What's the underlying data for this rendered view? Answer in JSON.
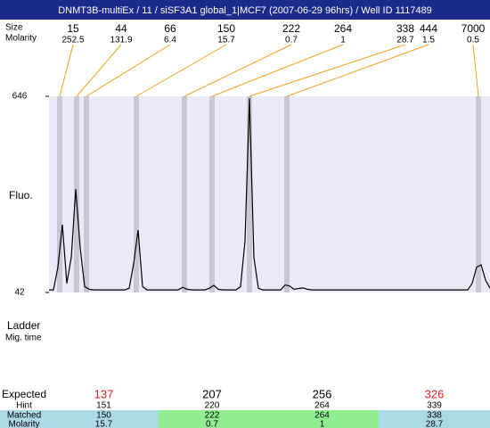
{
  "header": {
    "title": "DNMT3B-multiEx / 11 / siSF3A1 global_1|MCF7 (2007-06-29 96hrs) / Well ID 1117489"
  },
  "ladder_header": {
    "size_label": "Size",
    "molarity_label": "Molarity"
  },
  "ladder": [
    {
      "size": 15,
      "molarity": 252.5
    },
    {
      "size": 44,
      "molarity": 131.9
    },
    {
      "size": 66,
      "molarity": 6.4
    },
    {
      "size": 150,
      "molarity": 15.7
    },
    {
      "size": 222,
      "molarity": 0.7
    },
    {
      "size": 264,
      "molarity": 1
    },
    {
      "size": 338,
      "molarity": 28.7
    },
    {
      "size": 444,
      "molarity": 1.5
    },
    {
      "size": 7000,
      "molarity": 0.5
    }
  ],
  "chart_data": {
    "type": "line",
    "y_label": "Fluo.",
    "ylim": [
      42,
      646
    ],
    "yticks": [
      646,
      42
    ],
    "color": "#000000",
    "values": [
      50,
      50,
      120,
      251,
      70,
      150,
      360,
      180,
      60,
      52,
      50,
      50,
      50,
      50,
      50,
      50,
      50,
      50,
      55,
      130,
      234,
      60,
      50,
      50,
      50,
      50,
      50,
      50,
      50,
      50,
      58,
      52,
      50,
      50,
      50,
      50,
      55,
      64,
      52,
      50,
      50,
      50,
      50,
      60,
      200,
      640,
      150,
      55,
      50,
      50,
      50,
      50,
      50,
      65,
      62,
      52,
      54,
      56,
      52,
      50,
      50,
      50,
      50,
      50,
      50,
      50,
      50,
      50,
      50,
      50,
      50,
      50,
      50,
      50,
      50,
      50,
      50,
      50,
      50,
      50,
      50,
      50,
      50,
      50,
      50,
      50,
      50,
      50,
      50,
      50,
      50,
      50,
      50,
      50,
      50,
      70,
      120,
      127,
      80,
      55
    ]
  },
  "results": {
    "ladder_label": "Ladder",
    "mig_label": "Mig. time",
    "row_labels": [
      "Expected",
      "Hint",
      "Matched",
      "Molarity"
    ],
    "columns": [
      {
        "expected": 137,
        "expected_color": "#e02020",
        "hint": 151,
        "matched": 150,
        "molarity": 15.7,
        "background": "#add8e6"
      },
      {
        "expected": 207,
        "expected_color": "#000000",
        "hint": 220,
        "matched": 222,
        "molarity": 0.7,
        "background": "#90ee90"
      },
      {
        "expected": 256,
        "expected_color": "#000000",
        "hint": 264,
        "matched": 264,
        "molarity": 1,
        "background": "#90ee90"
      },
      {
        "expected": 326,
        "expected_color": "#e02020",
        "hint": 339,
        "matched": 338,
        "molarity": 28.7,
        "background": "#add8e6"
      }
    ]
  }
}
